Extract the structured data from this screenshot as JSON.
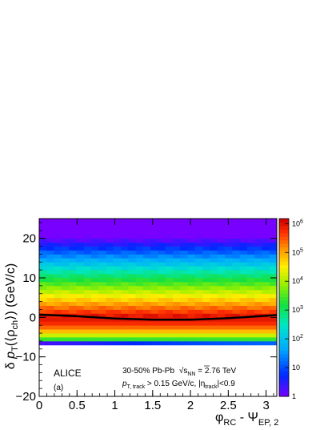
{
  "chart_data": {
    "type": "heatmap",
    "x": {
      "range": [
        0,
        3.1416
      ],
      "ticks": [
        0,
        0.5,
        1,
        1.5,
        2,
        2.5,
        3
      ],
      "tick_labels": [
        "0",
        "0.5",
        "1",
        "1.5",
        "2",
        "2.5",
        "3"
      ]
    },
    "y": {
      "range": [
        -20,
        25
      ],
      "ticks": [
        -20,
        -10,
        0,
        10,
        20
      ],
      "tick_labels": [
        "−20",
        "−10",
        "0",
        "10",
        "20"
      ]
    },
    "colorbar": {
      "scale": "log",
      "range": [
        1,
        1500000
      ],
      "ticks": [
        1,
        10,
        100,
        1000,
        10000,
        100000,
        1000000
      ],
      "tick_labels": [
        {
          "base": "1",
          "exp": ""
        },
        {
          "base": "10",
          "exp": ""
        },
        {
          "base": "10",
          "exp": "2"
        },
        {
          "base": "10",
          "exp": "3"
        },
        {
          "base": "10",
          "exp": "4"
        },
        {
          "base": "10",
          "exp": "5"
        },
        {
          "base": "10",
          "exp": "6"
        }
      ]
    },
    "density_model": {
      "peak_count": 1000000,
      "core_center": 0.3,
      "low_side_width": 3.2,
      "high_side_decay": 0.3,
      "lower_cutoff": -7
    },
    "mean_curve": {
      "x": [
        0,
        0.5,
        1.0,
        1.5,
        2.0,
        2.5,
        3.0,
        3.1416
      ],
      "y": [
        0.7,
        0.3,
        -0.3,
        -0.6,
        -0.6,
        -0.2,
        0.4,
        0.6
      ]
    },
    "annotations": {
      "experiment": "ALICE",
      "panel": "(a)",
      "centrality": "30-50% Pb-Pb",
      "sqrt_symbol": "√",
      "s_text": "s",
      "sub_nn": "NN",
      "energy": " = 2.76 TeV",
      "pt_symbol": "p",
      "pt_sub": "T, track",
      "cut_pt": " > 0.15 GeV/c, |η",
      "eta_sub": "track",
      "cut_eta": "|<0.9"
    },
    "axis_titles": {
      "y": {
        "delta": "δ",
        "p": "p",
        "p_sub": "T",
        "open": "(⟨ρ",
        "rho_sub": "ch",
        "close": "⟩) (GeV/c)"
      },
      "x": {
        "phi": "φ",
        "phi_sub": "RC",
        "minus": " - Ψ",
        "psi_sub": "EP, 2"
      }
    }
  }
}
